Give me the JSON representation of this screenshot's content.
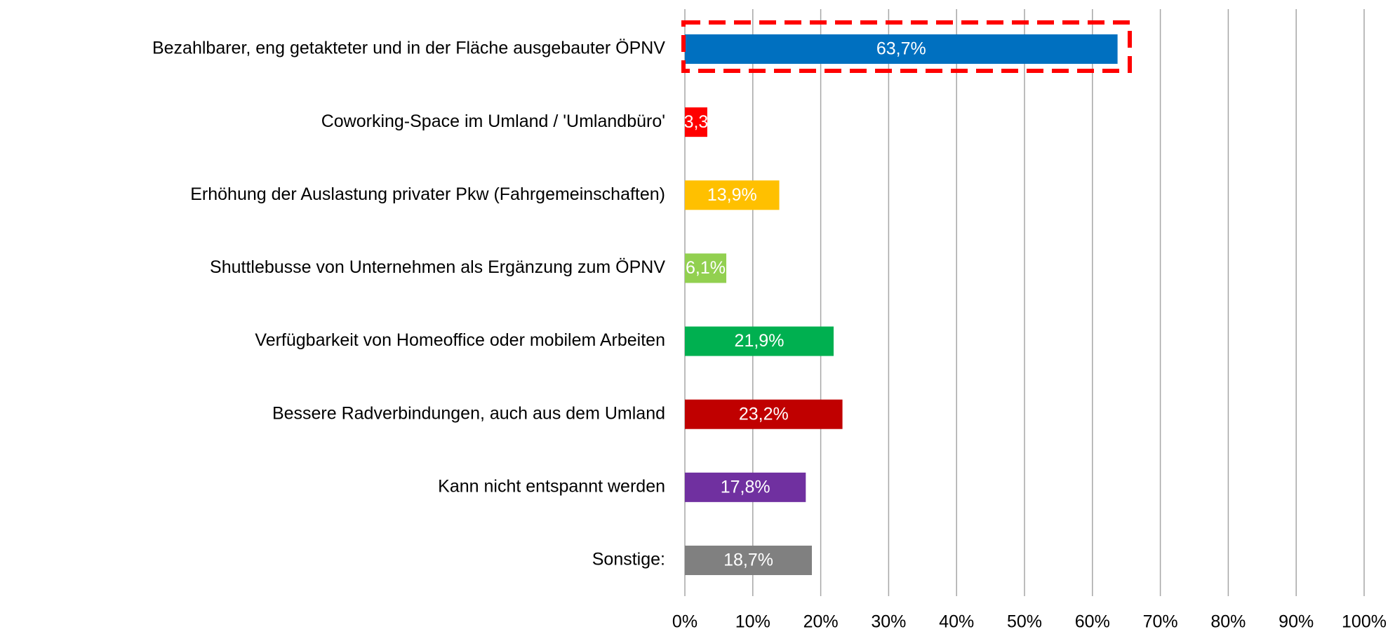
{
  "chart_data": {
    "type": "hbar",
    "categories": [
      "Bezahlbarer, eng getakteter und in der Fläche ausgebauter ÖPNV",
      "Coworking-Space im Umland / 'Umlandbüro'",
      "Erhöhung der Auslastung privater Pkw (Fahrgemeinschaften)",
      "Shuttlebusse von Unternehmen als Ergänzung zum ÖPNV",
      "Verfügbarkeit von Homeoffice oder mobilem Arbeiten",
      "Bessere Radverbindungen, auch aus dem Umland",
      "Kann nicht entspannt werden",
      "Sonstige:"
    ],
    "values": [
      63.7,
      3.3,
      13.9,
      6.1,
      21.9,
      23.2,
      17.8,
      18.7
    ],
    "value_labels": [
      "63,7%",
      "3,3",
      "13,9%",
      "6,1%",
      "21,9%",
      "23,2%",
      "17,8%",
      "18,7%"
    ],
    "colors": [
      "#0070c0",
      "#ff0000",
      "#ffc000",
      "#92d050",
      "#00b050",
      "#c00000",
      "#7030a0",
      "#808080"
    ],
    "xlim": [
      0,
      100
    ],
    "xticks": [
      {
        "value": 0,
        "label": "0%"
      },
      {
        "value": 10,
        "label": "10%"
      },
      {
        "value": 20,
        "label": "20%"
      },
      {
        "value": 30,
        "label": "30%"
      },
      {
        "value": 40,
        "label": "40%"
      },
      {
        "value": 50,
        "label": "50%"
      },
      {
        "value": 60,
        "label": "60%"
      },
      {
        "value": 70,
        "label": "70%"
      },
      {
        "value": 80,
        "label": "80%"
      },
      {
        "value": 90,
        "label": "90%"
      },
      {
        "value": 100,
        "label": "100%"
      }
    ],
    "grid": true
  }
}
